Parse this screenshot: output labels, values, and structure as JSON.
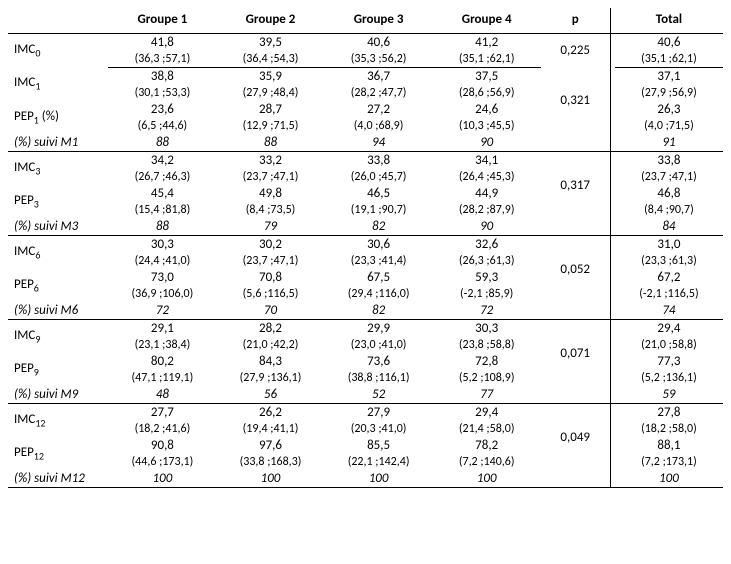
{
  "headers": {
    "g1": "Groupe 1",
    "g2": "Groupe 2",
    "g3": "Groupe 3",
    "g4": "Groupe 4",
    "p": "p",
    "total": "Total"
  },
  "sections": [
    {
      "rows": [
        {
          "label": "IMC",
          "sub": "0",
          "g1": "41,8",
          "g1r": "(36,3 ;57,1)",
          "g2": "39,5",
          "g2r": "(36,4 ;54,3)",
          "g3": "40,6",
          "g3r": "(35,3 ;56,2)",
          "g4": "41,2",
          "g4r": "(35,1 ;62,1)",
          "tot": "40,6",
          "totr": "(35,1 ;62,1)"
        }
      ],
      "p": "0,225",
      "suivi": null
    },
    {
      "rows": [
        {
          "label": "IMC",
          "sub": "1",
          "g1": "38,8",
          "g1r": "(30,1 ;53,3)",
          "g2": "35,9",
          "g2r": "(27,9 ;48,4)",
          "g3": "36,7",
          "g3r": "(28,2 ;47,7)",
          "g4": "37,5",
          "g4r": "(28,6 ;56,9)",
          "tot": "37,1",
          "totr": "(27,9 ;56,9)"
        },
        {
          "label": "PEP",
          "sub": "1",
          "suffix": " (%)",
          "g1": "23,6",
          "g1r": "(6,5 ;44,6)",
          "g2": "28,7",
          "g2r": "(12,9 ;71,5)",
          "g3": "27,2",
          "g3r": "(4,0 ;68,9)",
          "g4": "24,6",
          "g4r": "(10,3 ;45,5)",
          "tot": "26,3",
          "totr": "(4,0 ;71,5)"
        }
      ],
      "p": "0,321",
      "suivi": {
        "label": "(%) suivi M1",
        "g1": "88",
        "g2": "88",
        "g3": "94",
        "g4": "90",
        "tot": "91"
      }
    },
    {
      "rows": [
        {
          "label": "IMC",
          "sub": "3",
          "g1": "34,2",
          "g1r": "(26,7 ;46,3)",
          "g2": "33,2",
          "g2r": "(23,7 ;47,1)",
          "g3": "33,8",
          "g3r": "(26,0 ;45,7)",
          "g4": "34,1",
          "g4r": "(26,4 ;45,3)",
          "tot": "33,8",
          "totr": "(23,7 ;47,1)"
        },
        {
          "label": "PEP",
          "sub": "3",
          "g1": "45,4",
          "g1r": "(15,4 ;81,8)",
          "g2": "49,8",
          "g2r": "(8,4 ;73,5)",
          "g3": "46,5",
          "g3r": "(19,1 ;90,7)",
          "g4": "44,9",
          "g4r": "(28,2 ;87,9)",
          "tot": "46,8",
          "totr": "(8,4 ;90,7)"
        }
      ],
      "p": "0,317",
      "suivi": {
        "label": "(%) suivi M3",
        "g1": "88",
        "g2": "79",
        "g3": "82",
        "g4": "90",
        "tot": "84"
      }
    },
    {
      "rows": [
        {
          "label": "IMC",
          "sub": "6",
          "g1": "30,3",
          "g1r": "(24,4 ;41,0)",
          "g2": "30,2",
          "g2r": "(23,7 ;47,1)",
          "g3": "30,6",
          "g3r": "(23,3 ;41,4)",
          "g4": "32,6",
          "g4r": "(26,3 ;61,3)",
          "tot": "31,0",
          "totr": "(23,3 ;61,3)"
        },
        {
          "label": "PEP",
          "sub": "6",
          "g1": "73,0",
          "g1r": "(36,9 ;106,0)",
          "g2": "70,8",
          "g2r": "(5,6 ;116,5)",
          "g3": "67,5",
          "g3r": "(29,4 ;116,0)",
          "g4": "59,3",
          "g4r": "(-2,1 ;85,9)",
          "tot": "67,2",
          "totr": "(-2,1 ;116,5)"
        }
      ],
      "p": "0,052",
      "suivi": {
        "label": "(%) suivi M6",
        "g1": "72",
        "g2": "70",
        "g3": "82",
        "g4": "72",
        "tot": "74"
      }
    },
    {
      "rows": [
        {
          "label": "IMC",
          "sub": "9",
          "g1": "29,1",
          "g1r": "(23,1 ;38,4)",
          "g2": "28,2",
          "g2r": "(21,0 ;42,2)",
          "g3": "29,9",
          "g3r": "(23,0 ;41,0)",
          "g4": "30,3",
          "g4r": "(23,8 ;58,8)",
          "tot": "29,4",
          "totr": "(21,0 ;58,8)"
        },
        {
          "label": "PEP",
          "sub": "9",
          "g1": "80,2",
          "g1r": "(47,1 ;119,1)",
          "g2": "84,3",
          "g2r": "(27,9 ;136,1)",
          "g3": "73,6",
          "g3r": "(38,8 ;116,1)",
          "g4": "72,8",
          "g4r": "(5,2 ;108,9)",
          "tot": "77,3",
          "totr": "(5,2 ;136,1)"
        }
      ],
      "p": "0,071",
      "suivi": {
        "label": "(%) suivi M9",
        "g1": "48",
        "g2": "56",
        "g3": "52",
        "g4": "77",
        "tot": "59"
      }
    },
    {
      "rows": [
        {
          "label": "IMC",
          "sub": "12",
          "g1": "27,7",
          "g1r": "(18,2 ;41,6)",
          "g2": "26,2",
          "g2r": "(19,4 ;41,1)",
          "g3": "27,9",
          "g3r": "(20,3 ;41,0)",
          "g4": "29,4",
          "g4r": "(21,4 ;58,0)",
          "tot": "27,8",
          "totr": "(18,2 ;58,0)"
        },
        {
          "label": "PEP",
          "sub": "12",
          "g1": "90,8",
          "g1r": "(44,6 ;173,1)",
          "g2": "97,6",
          "g2r": "(33,8 ;168,3)",
          "g3": "85,5",
          "g3r": "(22,1 ;142,4)",
          "g4": "78,2",
          "g4r": "(7,2 ;140,6)",
          "tot": "88,1",
          "totr": "(7,2 ;173,1)"
        }
      ],
      "p": "0,049",
      "suivi": {
        "label": "(%) suivi M12",
        "g1": "100",
        "g2": "100",
        "g3": "100",
        "g4": "100",
        "tot": "100"
      }
    }
  ]
}
